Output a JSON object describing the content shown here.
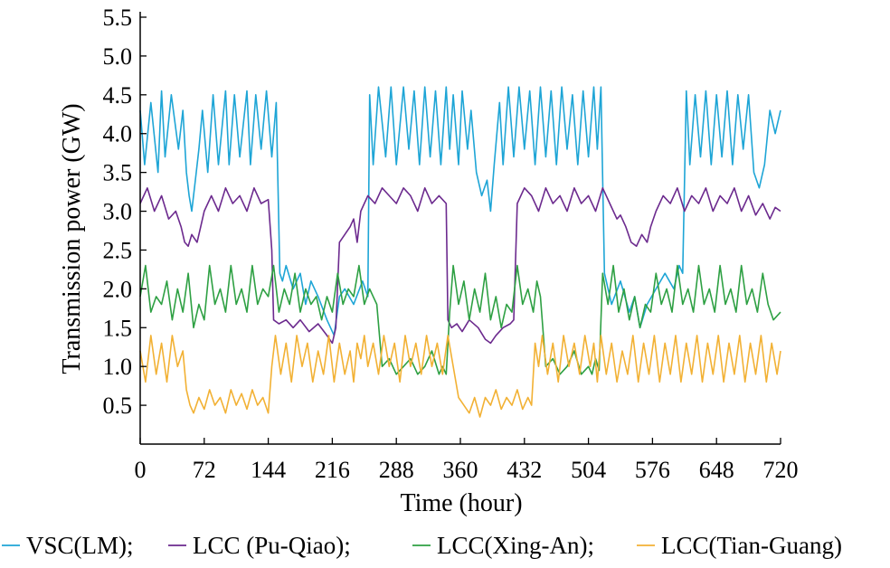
{
  "chart_data": {
    "type": "line",
    "xlabel": "Time (hour)",
    "ylabel": "Transmission power (GW)",
    "xlim": [
      0,
      720
    ],
    "ylim": [
      0,
      5.5
    ],
    "x_ticks": [
      "0",
      "72",
      "144",
      "216",
      "288",
      "360",
      "432",
      "504",
      "576",
      "648",
      "720"
    ],
    "y_ticks": [
      "0.5",
      "1.0",
      "1.5",
      "2.0",
      "2.5",
      "3.0",
      "3.5",
      "4.0",
      "4.5",
      "5.0",
      "5.5"
    ],
    "grid": false,
    "legend_position": "bottom",
    "series": [
      {
        "name": "VSC(LM);",
        "color": "#1ea5d6",
        "x": [
          0,
          5,
          12,
          20,
          24,
          28,
          35,
          43,
          48,
          52,
          55,
          58,
          62,
          66,
          70,
          76,
          82,
          88,
          96,
          100,
          106,
          112,
          120,
          124,
          130,
          136,
          142,
          148,
          153,
          157,
          160,
          164,
          172,
          180,
          186,
          192,
          200,
          210,
          218,
          224,
          230,
          240,
          250,
          256,
          258,
          262,
          268,
          276,
          282,
          288,
          296,
          302,
          308,
          314,
          320,
          326,
          332,
          338,
          344,
          348,
          352,
          358,
          362,
          368,
          372,
          378,
          384,
          390,
          394,
          398,
          404,
          408,
          414,
          420,
          426,
          432,
          438,
          444,
          450,
          456,
          462,
          468,
          474,
          480,
          486,
          492,
          498,
          504,
          510,
          514,
          518,
          522,
          530,
          540,
          550,
          556,
          562,
          570,
          580,
          590,
          600,
          606,
          610,
          614,
          618,
          624,
          630,
          636,
          642,
          648,
          654,
          660,
          666,
          672,
          678,
          684,
          690,
          696,
          702,
          708,
          714,
          720
        ],
        "values": [
          4.3,
          3.6,
          4.4,
          3.5,
          4.55,
          3.7,
          4.5,
          3.8,
          4.3,
          3.5,
          3.2,
          3.0,
          3.4,
          3.8,
          4.3,
          3.5,
          4.5,
          3.6,
          4.55,
          3.6,
          4.5,
          3.7,
          4.55,
          3.6,
          4.5,
          3.8,
          4.55,
          3.7,
          4.4,
          2.2,
          2.1,
          2.3,
          2.0,
          2.2,
          1.8,
          2.1,
          1.9,
          1.6,
          1.4,
          1.9,
          2.0,
          1.8,
          2.1,
          1.9,
          4.5,
          3.6,
          4.6,
          3.7,
          4.6,
          3.6,
          4.6,
          3.8,
          4.55,
          3.6,
          4.6,
          3.7,
          4.55,
          3.6,
          4.6,
          3.8,
          4.5,
          3.6,
          4.55,
          3.8,
          4.3,
          3.5,
          3.2,
          3.4,
          3.0,
          3.6,
          4.4,
          3.6,
          4.6,
          3.7,
          4.6,
          3.8,
          4.55,
          3.6,
          4.6,
          3.7,
          4.55,
          3.6,
          4.6,
          3.8,
          4.5,
          3.6,
          4.55,
          3.7,
          4.6,
          3.8,
          4.6,
          2.2,
          1.8,
          2.1,
          1.7,
          1.9,
          1.5,
          1.8,
          2.0,
          2.2,
          2.0,
          2.3,
          2.2,
          4.55,
          3.6,
          4.5,
          3.7,
          4.55,
          3.6,
          4.5,
          3.7,
          4.55,
          3.6,
          4.5,
          3.8,
          4.5,
          3.5,
          3.3,
          3.6,
          4.3,
          4.0,
          4.3
        ]
      },
      {
        "name": "LCC (Pu-Qiao);",
        "color": "#6c2a8e",
        "x": [
          0,
          8,
          16,
          24,
          32,
          40,
          46,
          50,
          54,
          58,
          64,
          68,
          72,
          80,
          88,
          96,
          104,
          112,
          120,
          128,
          136,
          144,
          148,
          150,
          156,
          164,
          172,
          180,
          190,
          200,
          210,
          216,
          220,
          224,
          230,
          236,
          240,
          244,
          248,
          256,
          264,
          272,
          280,
          288,
          296,
          304,
          312,
          320,
          328,
          336,
          344,
          346,
          350,
          356,
          362,
          370,
          380,
          388,
          394,
          400,
          408,
          416,
          420,
          424,
          432,
          440,
          448,
          456,
          464,
          472,
          480,
          488,
          496,
          504,
          512,
          520,
          528,
          536,
          540,
          546,
          552,
          558,
          564,
          570,
          574,
          580,
          588,
          596,
          604,
          612,
          620,
          628,
          636,
          644,
          652,
          660,
          668,
          676,
          684,
          692,
          700,
          708,
          714,
          720
        ],
        "values": [
          3.1,
          3.3,
          3.0,
          3.2,
          2.9,
          3.0,
          2.8,
          2.6,
          2.55,
          2.7,
          2.6,
          2.8,
          3.0,
          3.2,
          3.0,
          3.3,
          3.1,
          3.2,
          3.0,
          3.3,
          3.1,
          3.15,
          2.5,
          1.6,
          1.55,
          1.6,
          1.5,
          1.6,
          1.45,
          1.55,
          1.4,
          1.3,
          1.5,
          2.6,
          2.7,
          2.8,
          2.9,
          2.6,
          3.0,
          3.2,
          3.1,
          3.3,
          3.2,
          3.1,
          3.3,
          3.2,
          3.0,
          3.3,
          3.1,
          3.2,
          3.1,
          1.6,
          1.5,
          1.55,
          1.45,
          1.6,
          1.5,
          1.35,
          1.3,
          1.4,
          1.5,
          1.55,
          1.6,
          3.1,
          3.3,
          3.2,
          3.0,
          3.3,
          3.1,
          3.2,
          3.0,
          3.3,
          3.1,
          3.2,
          3.0,
          3.3,
          3.1,
          2.9,
          2.95,
          2.8,
          2.6,
          2.55,
          2.7,
          2.6,
          2.8,
          3.0,
          3.2,
          3.1,
          3.3,
          3.0,
          3.2,
          3.1,
          3.3,
          3.0,
          3.2,
          3.1,
          3.3,
          3.0,
          3.2,
          2.95,
          3.1,
          2.9,
          3.05,
          3.0
        ]
      },
      {
        "name": "LCC(Xing-An);",
        "color": "#2ea043",
        "x": [
          0,
          6,
          12,
          18,
          24,
          30,
          36,
          42,
          48,
          54,
          60,
          66,
          72,
          78,
          84,
          90,
          96,
          102,
          108,
          114,
          120,
          126,
          132,
          138,
          144,
          150,
          156,
          162,
          168,
          174,
          180,
          186,
          192,
          198,
          204,
          210,
          216,
          222,
          228,
          234,
          240,
          246,
          252,
          258,
          262,
          266,
          272,
          280,
          288,
          296,
          304,
          312,
          320,
          328,
          336,
          340,
          344,
          348,
          352,
          358,
          364,
          370,
          376,
          382,
          388,
          394,
          400,
          406,
          412,
          418,
          424,
          430,
          436,
          442,
          446,
          450,
          456,
          464,
          472,
          480,
          488,
          496,
          504,
          508,
          512,
          516,
          520,
          526,
          532,
          538,
          544,
          550,
          556,
          562,
          568,
          574,
          580,
          586,
          592,
          598,
          604,
          610,
          616,
          622,
          628,
          634,
          640,
          646,
          652,
          658,
          664,
          670,
          676,
          682,
          688,
          694,
          700,
          706,
          712,
          720
        ],
        "values": [
          1.9,
          2.3,
          1.7,
          1.9,
          1.8,
          2.1,
          1.6,
          2.0,
          1.7,
          2.2,
          1.5,
          1.8,
          1.6,
          2.3,
          1.8,
          2.0,
          1.7,
          2.3,
          1.8,
          2.0,
          1.7,
          2.3,
          1.8,
          2.0,
          1.9,
          2.3,
          1.7,
          2.0,
          1.8,
          2.2,
          1.7,
          2.0,
          1.8,
          1.9,
          1.6,
          1.9,
          1.7,
          2.2,
          1.8,
          2.0,
          1.9,
          2.3,
          1.8,
          2.0,
          1.9,
          1.8,
          1.0,
          1.1,
          0.9,
          1.0,
          1.1,
          0.9,
          1.0,
          1.2,
          0.9,
          1.0,
          0.9,
          1.7,
          2.3,
          1.8,
          2.1,
          1.6,
          2.0,
          1.7,
          2.2,
          1.6,
          1.9,
          1.5,
          1.8,
          1.7,
          2.3,
          1.8,
          2.0,
          1.7,
          2.1,
          1.9,
          1.0,
          1.1,
          0.9,
          1.0,
          1.2,
          0.9,
          1.0,
          0.9,
          1.1,
          0.95,
          2.2,
          1.8,
          2.3,
          1.7,
          2.0,
          1.6,
          1.9,
          1.5,
          1.8,
          1.7,
          2.2,
          1.8,
          2.0,
          1.7,
          2.3,
          1.8,
          2.0,
          1.7,
          2.3,
          1.8,
          2.0,
          1.7,
          2.3,
          1.8,
          2.0,
          1.7,
          2.3,
          1.8,
          2.0,
          1.7,
          2.2,
          1.8,
          1.6,
          1.7
        ]
      },
      {
        "name": "LCC(Tian-Guang)",
        "color": "#f2b134",
        "x": [
          0,
          6,
          12,
          18,
          24,
          30,
          36,
          42,
          48,
          52,
          56,
          60,
          66,
          72,
          78,
          84,
          90,
          96,
          102,
          108,
          114,
          120,
          126,
          132,
          138,
          144,
          148,
          152,
          158,
          164,
          170,
          176,
          182,
          188,
          194,
          200,
          206,
          212,
          218,
          224,
          230,
          236,
          240,
          244,
          248,
          252,
          256,
          262,
          268,
          274,
          280,
          286,
          292,
          298,
          304,
          310,
          316,
          322,
          328,
          334,
          340,
          346,
          352,
          358,
          364,
          370,
          376,
          382,
          388,
          394,
          400,
          406,
          412,
          418,
          424,
          430,
          436,
          440,
          444,
          448,
          452,
          458,
          464,
          470,
          476,
          482,
          488,
          494,
          500,
          506,
          510,
          514,
          518,
          524,
          530,
          536,
          542,
          548,
          554,
          560,
          566,
          572,
          578,
          584,
          590,
          596,
          602,
          608,
          614,
          620,
          626,
          632,
          638,
          644,
          650,
          656,
          662,
          668,
          674,
          680,
          686,
          692,
          698,
          704,
          710,
          716,
          720
        ],
        "values": [
          1.2,
          0.8,
          1.4,
          0.9,
          1.3,
          0.8,
          1.4,
          1.0,
          1.2,
          0.7,
          0.5,
          0.4,
          0.6,
          0.45,
          0.7,
          0.5,
          0.6,
          0.4,
          0.7,
          0.5,
          0.65,
          0.45,
          0.7,
          0.5,
          0.6,
          0.4,
          1.0,
          1.4,
          0.9,
          1.3,
          0.8,
          1.4,
          1.0,
          1.3,
          0.8,
          1.2,
          0.9,
          1.4,
          0.8,
          1.3,
          0.9,
          1.2,
          0.8,
          1.3,
          1.1,
          1.4,
          1.0,
          1.3,
          0.9,
          1.4,
          1.0,
          1.3,
          0.8,
          1.4,
          1.0,
          1.3,
          0.9,
          1.4,
          1.0,
          1.3,
          0.9,
          1.4,
          1.0,
          0.6,
          0.5,
          0.4,
          0.6,
          0.35,
          0.6,
          0.5,
          0.7,
          0.45,
          0.6,
          0.5,
          0.7,
          0.45,
          0.6,
          0.5,
          1.3,
          1.0,
          1.4,
          0.9,
          1.3,
          0.8,
          1.4,
          1.0,
          1.3,
          0.9,
          1.4,
          1.0,
          1.3,
          0.8,
          1.4,
          0.9,
          1.3,
          0.8,
          1.2,
          0.9,
          1.4,
          0.8,
          1.3,
          0.9,
          1.4,
          0.8,
          1.3,
          0.9,
          1.4,
          0.8,
          1.3,
          0.9,
          1.4,
          0.8,
          1.3,
          0.9,
          1.4,
          0.8,
          1.3,
          0.9,
          1.4,
          0.8,
          1.3,
          0.9,
          1.4,
          0.8,
          1.3,
          0.9,
          1.2
        ]
      }
    ]
  }
}
